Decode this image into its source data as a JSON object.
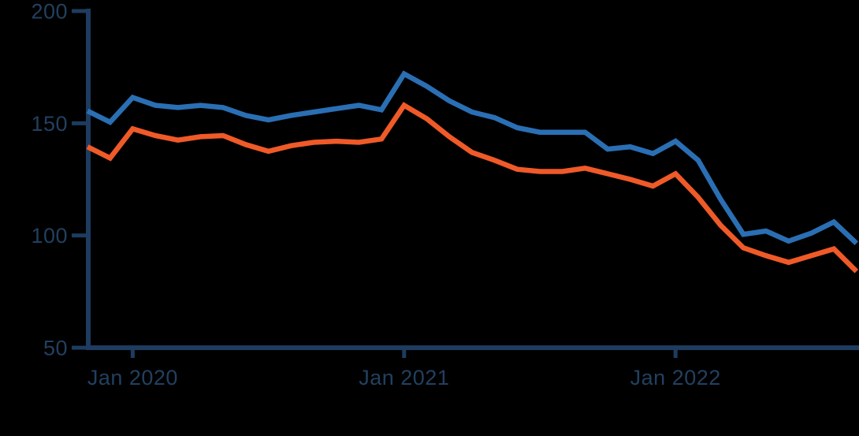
{
  "chart_data": {
    "type": "line",
    "title": "",
    "xlabel": "",
    "ylabel": "",
    "ylim": [
      50,
      200
    ],
    "grid": false,
    "legend": "none",
    "background_color": "#000000",
    "axis_color": "#1d3c5f",
    "label_color": "#22405f",
    "y_ticks": [
      200,
      150,
      100,
      50
    ],
    "x_ticks": [
      {
        "label": "Jan 2020",
        "index": 2
      },
      {
        "label": "Jan 2021",
        "index": 14
      },
      {
        "label": "Jan 2022",
        "index": 26
      }
    ],
    "x": [
      "Nov 2019",
      "Dec 2019",
      "Jan 2020",
      "Feb 2020",
      "Mar 2020",
      "Apr 2020",
      "May 2020",
      "Jun 2020",
      "Jul 2020",
      "Aug 2020",
      "Sep 2020",
      "Oct 2020",
      "Nov 2020",
      "Dec 2020",
      "Jan 2021",
      "Feb 2021",
      "Mar 2021",
      "Apr 2021",
      "May 2021",
      "Jun 2021",
      "Jul 2021",
      "Aug 2021",
      "Sep 2021",
      "Oct 2021",
      "Nov 2021",
      "Dec 2021",
      "Jan 2022",
      "Feb 2022",
      "Mar 2022",
      "Apr 2022",
      "May 2022",
      "Jun 2022",
      "Jul 2022",
      "Aug 2022",
      "Sep 2022"
    ],
    "series": [
      {
        "name": "orange",
        "color": "#ef5a28",
        "values": [
          139.5,
          134.5,
          147.5,
          144.5,
          142.5,
          144,
          144.5,
          140.5,
          137.5,
          140,
          141.5,
          142,
          141.5,
          143,
          158,
          152,
          144,
          137,
          133.5,
          129.5,
          128.5,
          128.5,
          130,
          127.5,
          125,
          122,
          127.5,
          117,
          104.5,
          94.5,
          91,
          88,
          91,
          94,
          84
        ]
      },
      {
        "name": "blue",
        "color": "#2a6fb4",
        "values": [
          155.5,
          150.5,
          161.5,
          158,
          157,
          158,
          157,
          153.5,
          151.5,
          153.5,
          155,
          156.5,
          158,
          156,
          172,
          166.5,
          160,
          155,
          152.5,
          148,
          146,
          146,
          146,
          138.5,
          139.5,
          136.5,
          142,
          133.5,
          116,
          100.5,
          102,
          97.5,
          101,
          106,
          96.5
        ]
      }
    ]
  }
}
